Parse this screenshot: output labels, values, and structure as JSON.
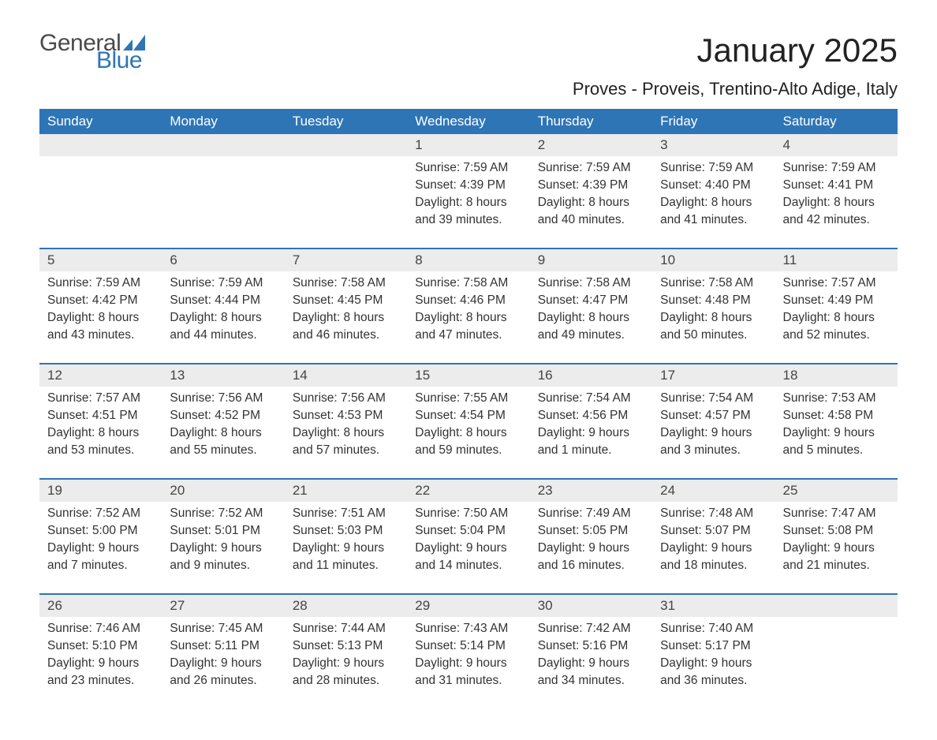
{
  "logo": {
    "text_general": "General",
    "text_blue": "Blue",
    "shape_color": "#2e75b6"
  },
  "title": "January 2025",
  "location": "Proves - Proveis, Trentino-Alto Adige, Italy",
  "colors": {
    "header_bg": "#2e75b6",
    "header_text": "#ffffff",
    "daynum_bg": "#ececec",
    "daynum_text": "#444444",
    "body_text": "#333333",
    "border": "#2e75b6",
    "page_bg": "#ffffff"
  },
  "day_headers": [
    "Sunday",
    "Monday",
    "Tuesday",
    "Wednesday",
    "Thursday",
    "Friday",
    "Saturday"
  ],
  "weeks": [
    [
      null,
      null,
      null,
      {
        "n": "1",
        "sunrise": "7:59 AM",
        "sunset": "4:39 PM",
        "daylight": "8 hours and 39 minutes."
      },
      {
        "n": "2",
        "sunrise": "7:59 AM",
        "sunset": "4:39 PM",
        "daylight": "8 hours and 40 minutes."
      },
      {
        "n": "3",
        "sunrise": "7:59 AM",
        "sunset": "4:40 PM",
        "daylight": "8 hours and 41 minutes."
      },
      {
        "n": "4",
        "sunrise": "7:59 AM",
        "sunset": "4:41 PM",
        "daylight": "8 hours and 42 minutes."
      }
    ],
    [
      {
        "n": "5",
        "sunrise": "7:59 AM",
        "sunset": "4:42 PM",
        "daylight": "8 hours and 43 minutes."
      },
      {
        "n": "6",
        "sunrise": "7:59 AM",
        "sunset": "4:44 PM",
        "daylight": "8 hours and 44 minutes."
      },
      {
        "n": "7",
        "sunrise": "7:58 AM",
        "sunset": "4:45 PM",
        "daylight": "8 hours and 46 minutes."
      },
      {
        "n": "8",
        "sunrise": "7:58 AM",
        "sunset": "4:46 PM",
        "daylight": "8 hours and 47 minutes."
      },
      {
        "n": "9",
        "sunrise": "7:58 AM",
        "sunset": "4:47 PM",
        "daylight": "8 hours and 49 minutes."
      },
      {
        "n": "10",
        "sunrise": "7:58 AM",
        "sunset": "4:48 PM",
        "daylight": "8 hours and 50 minutes."
      },
      {
        "n": "11",
        "sunrise": "7:57 AM",
        "sunset": "4:49 PM",
        "daylight": "8 hours and 52 minutes."
      }
    ],
    [
      {
        "n": "12",
        "sunrise": "7:57 AM",
        "sunset": "4:51 PM",
        "daylight": "8 hours and 53 minutes."
      },
      {
        "n": "13",
        "sunrise": "7:56 AM",
        "sunset": "4:52 PM",
        "daylight": "8 hours and 55 minutes."
      },
      {
        "n": "14",
        "sunrise": "7:56 AM",
        "sunset": "4:53 PM",
        "daylight": "8 hours and 57 minutes."
      },
      {
        "n": "15",
        "sunrise": "7:55 AM",
        "sunset": "4:54 PM",
        "daylight": "8 hours and 59 minutes."
      },
      {
        "n": "16",
        "sunrise": "7:54 AM",
        "sunset": "4:56 PM",
        "daylight": "9 hours and 1 minute."
      },
      {
        "n": "17",
        "sunrise": "7:54 AM",
        "sunset": "4:57 PM",
        "daylight": "9 hours and 3 minutes."
      },
      {
        "n": "18",
        "sunrise": "7:53 AM",
        "sunset": "4:58 PM",
        "daylight": "9 hours and 5 minutes."
      }
    ],
    [
      {
        "n": "19",
        "sunrise": "7:52 AM",
        "sunset": "5:00 PM",
        "daylight": "9 hours and 7 minutes."
      },
      {
        "n": "20",
        "sunrise": "7:52 AM",
        "sunset": "5:01 PM",
        "daylight": "9 hours and 9 minutes."
      },
      {
        "n": "21",
        "sunrise": "7:51 AM",
        "sunset": "5:03 PM",
        "daylight": "9 hours and 11 minutes."
      },
      {
        "n": "22",
        "sunrise": "7:50 AM",
        "sunset": "5:04 PM",
        "daylight": "9 hours and 14 minutes."
      },
      {
        "n": "23",
        "sunrise": "7:49 AM",
        "sunset": "5:05 PM",
        "daylight": "9 hours and 16 minutes."
      },
      {
        "n": "24",
        "sunrise": "7:48 AM",
        "sunset": "5:07 PM",
        "daylight": "9 hours and 18 minutes."
      },
      {
        "n": "25",
        "sunrise": "7:47 AM",
        "sunset": "5:08 PM",
        "daylight": "9 hours and 21 minutes."
      }
    ],
    [
      {
        "n": "26",
        "sunrise": "7:46 AM",
        "sunset": "5:10 PM",
        "daylight": "9 hours and 23 minutes."
      },
      {
        "n": "27",
        "sunrise": "7:45 AM",
        "sunset": "5:11 PM",
        "daylight": "9 hours and 26 minutes."
      },
      {
        "n": "28",
        "sunrise": "7:44 AM",
        "sunset": "5:13 PM",
        "daylight": "9 hours and 28 minutes."
      },
      {
        "n": "29",
        "sunrise": "7:43 AM",
        "sunset": "5:14 PM",
        "daylight": "9 hours and 31 minutes."
      },
      {
        "n": "30",
        "sunrise": "7:42 AM",
        "sunset": "5:16 PM",
        "daylight": "9 hours and 34 minutes."
      },
      {
        "n": "31",
        "sunrise": "7:40 AM",
        "sunset": "5:17 PM",
        "daylight": "9 hours and 36 minutes."
      },
      null
    ]
  ],
  "labels": {
    "sunrise": "Sunrise:",
    "sunset": "Sunset:",
    "daylight": "Daylight:"
  }
}
